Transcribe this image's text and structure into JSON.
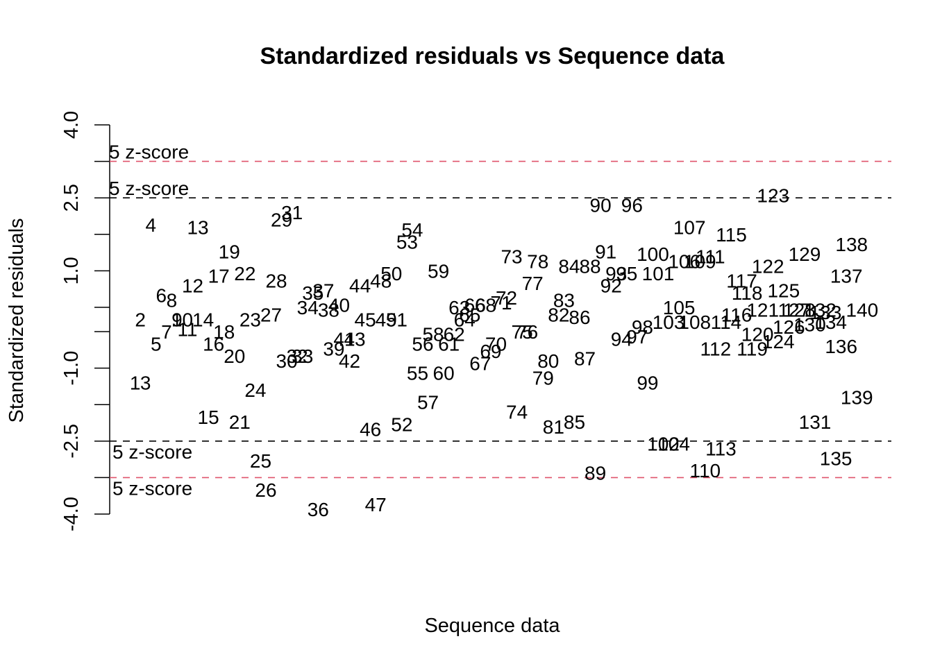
{
  "chart_data": {
    "type": "scatter",
    "title": "Standardized residuals vs Sequence data",
    "xlabel": "Sequence data",
    "ylabel": "Standardized residuals",
    "ylim": [
      -4.0,
      4.0
    ],
    "yticks": [
      "-4.0",
      "-2.5",
      "-1.0",
      "1.0",
      "2.5",
      "4.0"
    ],
    "ytick_values": [
      -4.0,
      -2.5,
      -1.0,
      1.0,
      2.5,
      4.0
    ],
    "minor_ytick_values": [
      -3.25,
      -1.75,
      -0.25,
      0.25,
      1.75,
      3.25
    ],
    "grid": false,
    "reference_lines": [
      {
        "value": 3.25,
        "color": "#DF536B",
        "label": "5 z-score"
      },
      {
        "value": 2.5,
        "color": "#000000",
        "label": "5 z-score"
      },
      {
        "value": -2.5,
        "color": "#000000",
        "label": "5 z-score"
      },
      {
        "value": -3.25,
        "color": "#DF536B",
        "label": "5 z-score"
      }
    ],
    "points": [
      {
        "x": 1,
        "label": "1",
        "y": -1.3
      },
      {
        "x": 2,
        "label": "2",
        "y": 0.0
      },
      {
        "x": 3,
        "label": "3",
        "y": -1.3
      },
      {
        "x": 4,
        "label": "4",
        "y": 1.95
      },
      {
        "x": 5,
        "label": "5",
        "y": -0.5
      },
      {
        "x": 6,
        "label": "6",
        "y": 0.5
      },
      {
        "x": 7,
        "label": "7",
        "y": -0.25
      },
      {
        "x": 8,
        "label": "8",
        "y": 0.4
      },
      {
        "x": 9,
        "label": "9",
        "y": 0.0
      },
      {
        "x": 10,
        "label": "10",
        "y": 0.0
      },
      {
        "x": 11,
        "label": "11",
        "y": -0.2
      },
      {
        "x": 12,
        "label": "12",
        "y": 0.7
      },
      {
        "x": 13,
        "label": "13",
        "y": 1.9
      },
      {
        "x": 14,
        "label": "14",
        "y": 0.0
      },
      {
        "x": 15,
        "label": "15",
        "y": -2.0
      },
      {
        "x": 16,
        "label": "16",
        "y": -0.5
      },
      {
        "x": 17,
        "label": "17",
        "y": 0.9
      },
      {
        "x": 18,
        "label": "18",
        "y": -0.25
      },
      {
        "x": 19,
        "label": "19",
        "y": 1.4
      },
      {
        "x": 20,
        "label": "20",
        "y": -0.75
      },
      {
        "x": 21,
        "label": "21",
        "y": -2.1
      },
      {
        "x": 22,
        "label": "22",
        "y": 0.95
      },
      {
        "x": 23,
        "label": "23",
        "y": 0.0
      },
      {
        "x": 24,
        "label": "24",
        "y": -1.45
      },
      {
        "x": 25,
        "label": "25",
        "y": -2.9
      },
      {
        "x": 26,
        "label": "26",
        "y": -3.5
      },
      {
        "x": 27,
        "label": "27",
        "y": 0.1
      },
      {
        "x": 28,
        "label": "28",
        "y": 0.8
      },
      {
        "x": 29,
        "label": "29",
        "y": 2.05
      },
      {
        "x": 30,
        "label": "30",
        "y": -0.85
      },
      {
        "x": 31,
        "label": "31",
        "y": 2.2
      },
      {
        "x": 32,
        "label": "32",
        "y": -0.75
      },
      {
        "x": 33,
        "label": "33",
        "y": -0.75
      },
      {
        "x": 34,
        "label": "34",
        "y": 0.25
      },
      {
        "x": 35,
        "label": "35",
        "y": 0.55
      },
      {
        "x": 36,
        "label": "36",
        "y": -3.9
      },
      {
        "x": 37,
        "label": "37",
        "y": 0.6
      },
      {
        "x": 38,
        "label": "38",
        "y": 0.2
      },
      {
        "x": 39,
        "label": "39",
        "y": -0.6
      },
      {
        "x": 40,
        "label": "40",
        "y": 0.3
      },
      {
        "x": 41,
        "label": "41",
        "y": -0.4
      },
      {
        "x": 42,
        "label": "42",
        "y": -0.85
      },
      {
        "x": 43,
        "label": "43",
        "y": -0.4
      },
      {
        "x": 44,
        "label": "44",
        "y": 0.7
      },
      {
        "x": 45,
        "label": "45",
        "y": 0.0
      },
      {
        "x": 46,
        "label": "46",
        "y": -2.25
      },
      {
        "x": 47,
        "label": "47",
        "y": -3.8
      },
      {
        "x": 48,
        "label": "48",
        "y": 0.8
      },
      {
        "x": 49,
        "label": "49",
        "y": 0.0
      },
      {
        "x": 50,
        "label": "50",
        "y": 0.95
      },
      {
        "x": 51,
        "label": "51",
        "y": 0.0
      },
      {
        "x": 52,
        "label": "52",
        "y": -2.15
      },
      {
        "x": 53,
        "label": "53",
        "y": 1.6
      },
      {
        "x": 54,
        "label": "54",
        "y": 1.85
      },
      {
        "x": 55,
        "label": "55",
        "y": -1.1
      },
      {
        "x": 56,
        "label": "56",
        "y": -0.5
      },
      {
        "x": 57,
        "label": "57",
        "y": -1.7
      },
      {
        "x": 58,
        "label": "58",
        "y": -0.3
      },
      {
        "x": 59,
        "label": "59",
        "y": 1.0
      },
      {
        "x": 60,
        "label": "60",
        "y": -1.1
      },
      {
        "x": 61,
        "label": "61",
        "y": -0.5
      },
      {
        "x": 62,
        "label": "62",
        "y": -0.3
      },
      {
        "x": 63,
        "label": "63",
        "y": 0.25
      },
      {
        "x": 64,
        "label": "64",
        "y": 0.0
      },
      {
        "x": 65,
        "label": "65",
        "y": 0.1
      },
      {
        "x": 66,
        "label": "66",
        "y": 0.3
      },
      {
        "x": 67,
        "label": "67",
        "y": -0.9
      },
      {
        "x": 68,
        "label": "68",
        "y": 0.3
      },
      {
        "x": 69,
        "label": "69",
        "y": -0.65
      },
      {
        "x": 70,
        "label": "70",
        "y": -0.5
      },
      {
        "x": 71,
        "label": "71",
        "y": 0.35
      },
      {
        "x": 72,
        "label": "72",
        "y": 0.45
      },
      {
        "x": 73,
        "label": "73",
        "y": 1.3
      },
      {
        "x": 74,
        "label": "74",
        "y": -1.9
      },
      {
        "x": 75,
        "label": "75",
        "y": -0.25
      },
      {
        "x": 76,
        "label": "76",
        "y": -0.25
      },
      {
        "x": 77,
        "label": "77",
        "y": 0.75
      },
      {
        "x": 78,
        "label": "78",
        "y": 1.2
      },
      {
        "x": 79,
        "label": "79",
        "y": -1.2
      },
      {
        "x": 80,
        "label": "80",
        "y": -0.85
      },
      {
        "x": 81,
        "label": "81",
        "y": -2.2
      },
      {
        "x": 82,
        "label": "82",
        "y": 0.1
      },
      {
        "x": 83,
        "label": "83",
        "y": 0.4
      },
      {
        "x": 84,
        "label": "84",
        "y": 1.1
      },
      {
        "x": 85,
        "label": "85",
        "y": -2.1
      },
      {
        "x": 86,
        "label": "86",
        "y": 0.05
      },
      {
        "x": 87,
        "label": "87",
        "y": -0.8
      },
      {
        "x": 88,
        "label": "88",
        "y": 1.1
      },
      {
        "x": 89,
        "label": "89",
        "y": -3.15
      },
      {
        "x": 90,
        "label": "90",
        "y": 2.35
      },
      {
        "x": 91,
        "label": "91",
        "y": 1.4
      },
      {
        "x": 92,
        "label": "92",
        "y": 0.7
      },
      {
        "x": 93,
        "label": "93",
        "y": 0.95
      },
      {
        "x": 94,
        "label": "94",
        "y": -0.4
      },
      {
        "x": 95,
        "label": "95",
        "y": 0.95
      },
      {
        "x": 96,
        "label": "96",
        "y": 2.35
      },
      {
        "x": 97,
        "label": "97",
        "y": -0.35
      },
      {
        "x": 98,
        "label": "98",
        "y": -0.15
      },
      {
        "x": 99,
        "label": "99",
        "y": -1.3
      },
      {
        "x": 100,
        "label": "100",
        "y": 1.35
      },
      {
        "x": 101,
        "label": "101",
        "y": 0.95
      },
      {
        "x": 102,
        "label": "102",
        "y": -2.55
      },
      {
        "x": 103,
        "label": "103",
        "y": -0.05
      },
      {
        "x": 104,
        "label": "104",
        "y": -2.55
      },
      {
        "x": 105,
        "label": "105",
        "y": 0.25
      },
      {
        "x": 106,
        "label": "106",
        "y": 1.2
      },
      {
        "x": 107,
        "label": "107",
        "y": 1.9
      },
      {
        "x": 108,
        "label": "108",
        "y": -0.05
      },
      {
        "x": 109,
        "label": "109",
        "y": 1.2
      },
      {
        "x": 110,
        "label": "110",
        "y": -3.1
      },
      {
        "x": 111,
        "label": "111",
        "y": 1.3
      },
      {
        "x": 112,
        "label": "112",
        "y": -0.6
      },
      {
        "x": 113,
        "label": "113",
        "y": -2.65
      },
      {
        "x": 114,
        "label": "114",
        "y": -0.05
      },
      {
        "x": 115,
        "label": "115",
        "y": 1.75
      },
      {
        "x": 116,
        "label": "116",
        "y": 0.1
      },
      {
        "x": 117,
        "label": "117",
        "y": 0.8
      },
      {
        "x": 118,
        "label": "118",
        "y": 0.55
      },
      {
        "x": 119,
        "label": "119",
        "y": -0.6
      },
      {
        "x": 120,
        "label": "120",
        "y": -0.3
      },
      {
        "x": 121,
        "label": "121",
        "y": 0.2
      },
      {
        "x": 122,
        "label": "122",
        "y": 1.1
      },
      {
        "x": 123,
        "label": "123",
        "y": 2.55
      },
      {
        "x": 124,
        "label": "124",
        "y": -0.45
      },
      {
        "x": 125,
        "label": "125",
        "y": 0.6
      },
      {
        "x": 126,
        "label": "126",
        "y": -0.15
      },
      {
        "x": 127,
        "label": "127",
        "y": 0.2
      },
      {
        "x": 128,
        "label": "128",
        "y": 0.2
      },
      {
        "x": 129,
        "label": "129",
        "y": 1.35
      },
      {
        "x": 130,
        "label": "130",
        "y": -0.1
      },
      {
        "x": 131,
        "label": "131",
        "y": -2.1
      },
      {
        "x": 132,
        "label": "132",
        "y": 0.2
      },
      {
        "x": 133,
        "label": "133",
        "y": 0.15
      },
      {
        "x": 134,
        "label": "134",
        "y": -0.05
      },
      {
        "x": 135,
        "label": "135",
        "y": -2.85
      },
      {
        "x": 136,
        "label": "136",
        "y": -0.55
      },
      {
        "x": 137,
        "label": "137",
        "y": 0.9
      },
      {
        "x": 138,
        "label": "138",
        "y": 1.55
      },
      {
        "x": 139,
        "label": "139",
        "y": -1.6
      },
      {
        "x": 140,
        "label": "140",
        "y": 0.2
      }
    ]
  }
}
